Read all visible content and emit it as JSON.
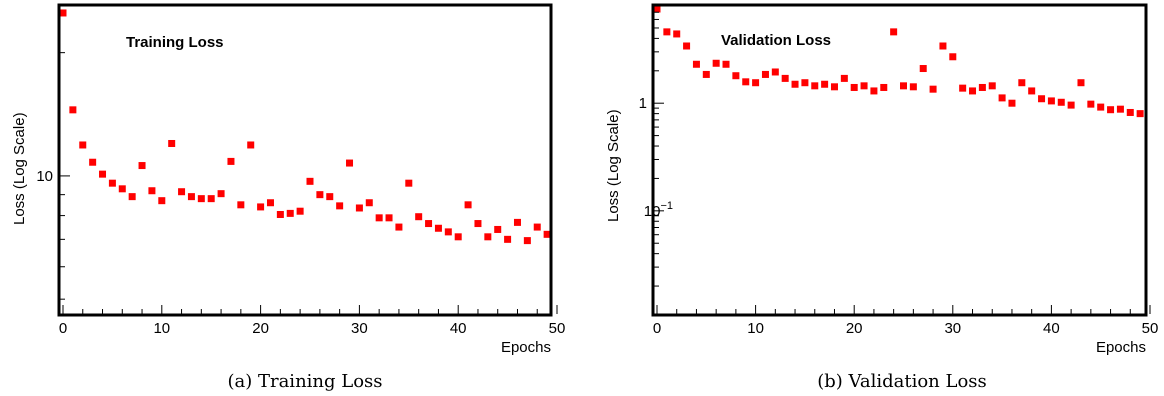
{
  "chart_data": [
    {
      "type": "scatter",
      "title": "Training Loss",
      "xlabel": "Epochs",
      "ylabel": "Loss (Log Scale)",
      "caption": "(a) Training Loss",
      "xlim": [
        0,
        50
      ],
      "ylim": [
        4.6,
        26
      ],
      "yscale": "log",
      "x_ticks": [
        0,
        10,
        20,
        30,
        40,
        50
      ],
      "y_tick_labels": [
        {
          "value": 10,
          "label": "10"
        }
      ],
      "marker_color": "#ff0000",
      "series": [
        {
          "x": [
            0,
            1,
            2,
            3,
            4,
            5,
            6,
            7,
            8,
            9,
            10,
            11,
            12,
            13,
            14,
            15,
            16,
            17,
            18,
            19,
            20,
            21,
            22,
            23,
            24,
            25,
            26,
            27,
            28,
            29,
            30,
            31,
            32,
            33,
            34,
            35,
            36,
            37,
            38,
            39,
            40,
            41,
            42,
            43,
            44,
            45,
            46,
            47,
            48,
            49
          ],
          "y": [
            25,
            14.5,
            11.9,
            10.8,
            10.1,
            9.6,
            9.3,
            8.9,
            10.6,
            9.2,
            8.7,
            12.0,
            9.15,
            8.9,
            8.8,
            8.8,
            9.05,
            10.85,
            8.5,
            11.9,
            8.4,
            8.6,
            8.05,
            8.1,
            8.2,
            9.7,
            9.0,
            8.9,
            8.45,
            10.75,
            8.35,
            8.6,
            7.9,
            7.9,
            7.5,
            9.6,
            7.95,
            7.65,
            7.45,
            7.3,
            7.1,
            8.5,
            7.65,
            7.1,
            7.4,
            7.0,
            7.7,
            6.95,
            7.5,
            7.2
          ]
        }
      ]
    },
    {
      "type": "scatter",
      "title": "Validation Loss",
      "xlabel": "Epochs",
      "ylabel": "Loss (Log Scale)",
      "caption": "(b) Validation Loss",
      "xlim": [
        0,
        50
      ],
      "ylim": [
        0.011,
        8
      ],
      "yscale": "log",
      "x_ticks": [
        0,
        10,
        20,
        30,
        40,
        50
      ],
      "y_tick_labels": [
        {
          "value": 1,
          "label": "1"
        },
        {
          "value": 0.1,
          "label": "10",
          "exponent": "−1"
        }
      ],
      "marker_color": "#ff0000",
      "series": [
        {
          "x": [
            0,
            1,
            2,
            3,
            4,
            5,
            6,
            7,
            8,
            9,
            10,
            11,
            12,
            13,
            14,
            15,
            16,
            17,
            18,
            19,
            20,
            21,
            22,
            23,
            24,
            25,
            26,
            27,
            28,
            29,
            30,
            31,
            32,
            33,
            34,
            35,
            36,
            37,
            38,
            39,
            40,
            41,
            42,
            43,
            44,
            45,
            46,
            47,
            48,
            49
          ],
          "y": [
            7.5,
            4.6,
            4.4,
            3.4,
            2.3,
            1.85,
            2.35,
            2.3,
            1.8,
            1.58,
            1.55,
            1.85,
            1.95,
            1.7,
            1.5,
            1.55,
            1.45,
            1.5,
            1.42,
            1.7,
            1.4,
            1.45,
            1.3,
            1.4,
            4.6,
            1.45,
            1.42,
            2.1,
            1.35,
            3.4,
            2.7,
            1.38,
            1.3,
            1.4,
            1.45,
            1.12,
            1.0,
            1.55,
            1.3,
            1.1,
            1.05,
            1.02,
            0.96,
            1.55,
            0.98,
            0.92,
            0.87,
            0.88,
            0.82,
            0.8
          ]
        }
      ]
    }
  ]
}
